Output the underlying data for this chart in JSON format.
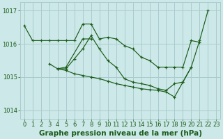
{
  "bg_color": "#cce8e8",
  "plot_bg_color": "#cce8e8",
  "grid_color": "#aacccc",
  "line_color": "#1a5c1a",
  "xlabel": "Graphe pression niveau de la mer (hPa)",
  "ylim": [
    1013.75,
    1017.25
  ],
  "xlim": [
    -0.5,
    23.5
  ],
  "yticks": [
    1014,
    1015,
    1016,
    1017
  ],
  "xticks": [
    0,
    1,
    2,
    3,
    4,
    5,
    6,
    7,
    8,
    9,
    10,
    11,
    12,
    13,
    14,
    15,
    16,
    17,
    18,
    19,
    20,
    21,
    22,
    23
  ],
  "tick_fontsize": 6,
  "xlabel_fontsize": 7.5,
  "series": [
    {
      "x": [
        0,
        1,
        2,
        3,
        4,
        5,
        6,
        7,
        8,
        9,
        10,
        11,
        12,
        13,
        14,
        15,
        16,
        17,
        18,
        19,
        20,
        21
      ],
      "y": [
        1016.55,
        1016.1,
        1016.1,
        1016.1,
        1016.1,
        1016.1,
        1016.1,
        1016.6,
        1016.6,
        1016.15,
        1016.2,
        1016.15,
        1015.95,
        1015.85,
        1015.6,
        1015.5,
        1015.3,
        1015.3,
        1015.3,
        1015.3,
        1016.1,
        1016.05
      ]
    },
    {
      "x": [
        3,
        4,
        5,
        7,
        8
      ],
      "y": [
        1015.4,
        1015.25,
        1015.3,
        1016.15,
        1016.15
      ]
    },
    {
      "x": [
        4,
        5,
        6,
        7,
        8,
        9,
        10,
        11,
        12,
        13,
        14,
        15,
        16,
        17,
        18,
        19,
        20
      ],
      "y": [
        1015.25,
        1015.25,
        1015.55,
        1015.85,
        1016.25,
        1015.85,
        1015.5,
        1015.3,
        1014.95,
        1014.85,
        1014.8,
        1014.75,
        1014.65,
        1014.6,
        1014.8,
        1014.85,
        1015.3
      ]
    },
    {
      "x": [
        4,
        5,
        6,
        7,
        8,
        9,
        10,
        11,
        12,
        13,
        14,
        15,
        16,
        17,
        18,
        19,
        20,
        21,
        22
      ],
      "y": [
        1015.25,
        1015.2,
        1015.1,
        1015.05,
        1015.0,
        1014.95,
        1014.88,
        1014.8,
        1014.75,
        1014.7,
        1014.65,
        1014.62,
        1014.6,
        1014.55,
        1014.4,
        1014.85,
        1015.3,
        1016.1,
        1017.0
      ]
    }
  ]
}
